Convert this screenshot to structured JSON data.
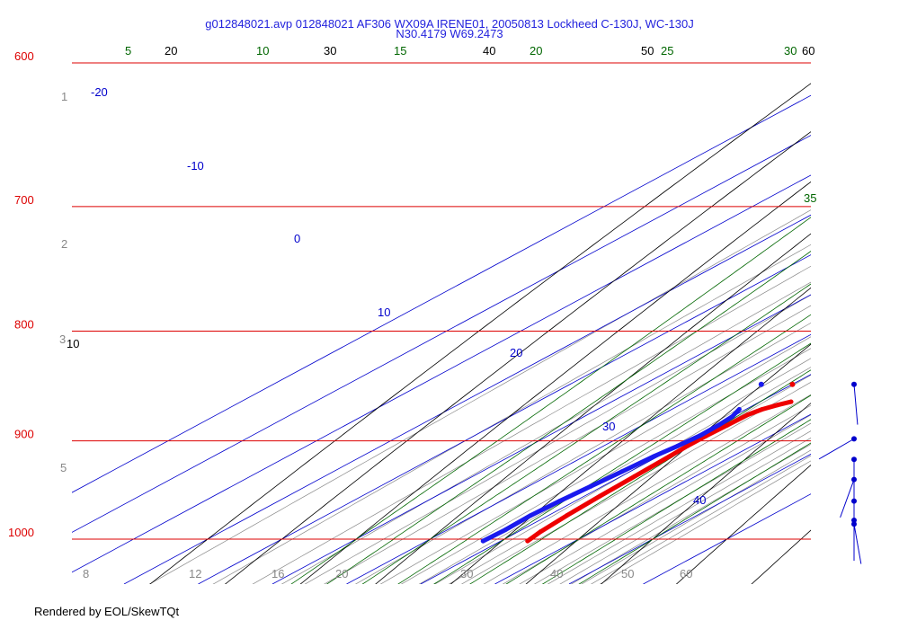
{
  "header": {
    "title": "g012848021.avp 012848021 AF306 WX09A IRENE01, 20050813 Lockheed C-130J, WC-130J",
    "location": "N30.4179 W69.2473"
  },
  "footer": {
    "credit": "Rendered by EOL/SkewTQt"
  },
  "colors": {
    "isobar": "#dd0000",
    "isotherm": "#0000cc",
    "dry_adiabat": "#000000",
    "moist_adiabat": "#006600",
    "mixing_ratio": "#888888",
    "temperature": "#ee0000",
    "dewpoint": "#1a1aee",
    "wind": "#0000cc",
    "title": "#2222dd"
  },
  "chart_data": {
    "type": "skew-t log-p",
    "pressure_axis": {
      "label_units": "hPa",
      "range": [
        1050,
        600
      ],
      "scale": "log",
      "ticks": [
        {
          "value": 600,
          "label": "600"
        },
        {
          "value": 700,
          "label": "700"
        },
        {
          "value": 800,
          "label": "800"
        },
        {
          "value": 900,
          "label": "900"
        },
        {
          "value": 1000,
          "label": "1000"
        }
      ]
    },
    "isotherm_labels": [
      {
        "value": -20,
        "label": "-20"
      },
      {
        "value": -10,
        "label": "-10"
      },
      {
        "value": 0,
        "label": "0"
      },
      {
        "value": 10,
        "label": "10"
      },
      {
        "value": 20,
        "label": "20"
      },
      {
        "value": 30,
        "label": "30"
      },
      {
        "value": 40,
        "label": "40"
      }
    ],
    "dry_adiabat_labels": [
      {
        "value": 10,
        "label": "10"
      },
      {
        "value": 20,
        "label": "20"
      },
      {
        "value": 30,
        "label": "30"
      },
      {
        "value": 40,
        "label": "40"
      },
      {
        "value": 50,
        "label": "50"
      },
      {
        "value": 60,
        "label": "60"
      }
    ],
    "moist_adiabat_labels": [
      {
        "value": 5,
        "label": "5"
      },
      {
        "value": 10,
        "label": "10"
      },
      {
        "value": 15,
        "label": "15"
      },
      {
        "value": 20,
        "label": "20"
      },
      {
        "value": 25,
        "label": "25"
      },
      {
        "value": 30,
        "label": "30"
      },
      {
        "value": 35,
        "label": "35"
      }
    ],
    "mixing_ratio_labels": [
      {
        "value": 8,
        "label": "8"
      },
      {
        "value": 12,
        "label": "12"
      },
      {
        "value": 16,
        "label": "16"
      },
      {
        "value": 20,
        "label": "20"
      },
      {
        "value": 30,
        "label": "30"
      },
      {
        "value": 40,
        "label": "40"
      },
      {
        "value": 50,
        "label": "50"
      },
      {
        "value": 60,
        "label": "60"
      }
    ],
    "left_axis_labels": [
      {
        "value": 1,
        "label": "1"
      },
      {
        "value": 2,
        "label": "2"
      },
      {
        "value": 3,
        "label": "3"
      },
      {
        "value": 5,
        "label": "5"
      }
    ],
    "temperature_profile": [
      {
        "p": 1002,
        "t": 23.6
      },
      {
        "p": 992,
        "t": 23.0
      },
      {
        "p": 975,
        "t": 22.5
      },
      {
        "p": 955,
        "t": 22.1
      },
      {
        "p": 935,
        "t": 21.8
      },
      {
        "p": 915,
        "t": 21.5
      },
      {
        "p": 905,
        "t": 21.3
      },
      {
        "p": 895,
        "t": 21.3
      },
      {
        "p": 885,
        "t": 21.5
      },
      {
        "p": 875,
        "t": 21.6
      },
      {
        "p": 870,
        "t": 22.2
      },
      {
        "p": 866,
        "t": 23.2
      },
      {
        "p": 863,
        "t": 24.2
      }
    ],
    "dewpoint_profile": [
      {
        "p": 1002,
        "t": 17.6
      },
      {
        "p": 990,
        "t": 17.8
      },
      {
        "p": 975,
        "t": 17.6
      },
      {
        "p": 960,
        "t": 17.9
      },
      {
        "p": 945,
        "t": 18.4
      },
      {
        "p": 930,
        "t": 18.9
      },
      {
        "p": 915,
        "t": 19.4
      },
      {
        "p": 905,
        "t": 20.0
      },
      {
        "p": 895,
        "t": 20.4
      },
      {
        "p": 885,
        "t": 20.3
      },
      {
        "p": 877,
        "t": 20.0
      },
      {
        "p": 870,
        "t": 19.1
      }
    ],
    "isolated_points": [
      {
        "series": "temperature",
        "p": 847,
        "t": 20.0
      },
      {
        "series": "dewpoint",
        "p": 847,
        "t": 15.8
      }
    ],
    "wind_profile": [
      {
        "p": 847,
        "from_deg": 175,
        "speed_kt": 5
      },
      {
        "p": 898,
        "from_deg": 240,
        "speed_kt": 7
      },
      {
        "p": 918,
        "from_deg": 180,
        "speed_kt": 3
      },
      {
        "p": 938,
        "from_deg": 200,
        "speed_kt": 4
      },
      {
        "p": 960,
        "from_deg": 180,
        "speed_kt": 2
      },
      {
        "p": 980,
        "from_deg": 180,
        "speed_kt": 2
      },
      {
        "p": 984,
        "from_deg": 170,
        "speed_kt": 3
      }
    ]
  }
}
